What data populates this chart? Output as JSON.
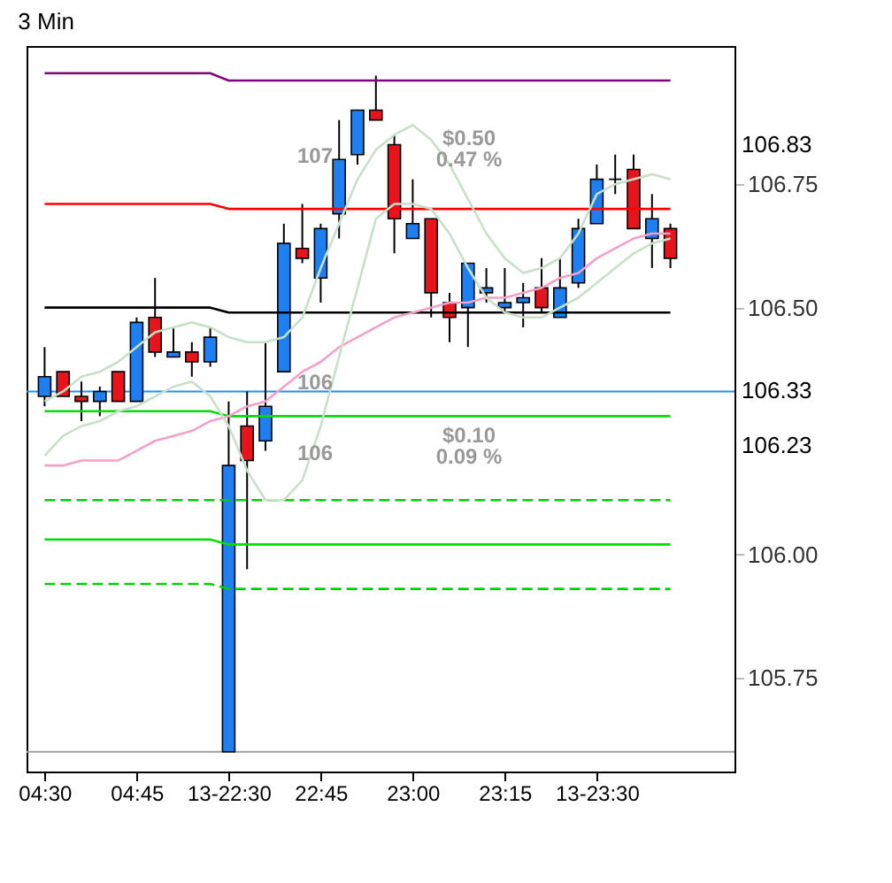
{
  "chart_data": {
    "type": "candlestick",
    "title": "3 Min",
    "categories": [
      "04:30",
      null,
      null,
      null,
      null,
      "04:45",
      null,
      null,
      null,
      null,
      "13-22:30",
      null,
      null,
      null,
      null,
      "22:45",
      null,
      null,
      null,
      null,
      "23:00",
      null,
      null,
      null,
      null,
      "23:15",
      null,
      null,
      null,
      null,
      "13-23:30",
      null,
      null,
      null,
      null
    ],
    "ohlc": [
      [
        106.32,
        106.42,
        106.3,
        106.36
      ],
      [
        106.37,
        106.37,
        106.32,
        106.32
      ],
      [
        106.32,
        106.35,
        106.27,
        106.31
      ],
      [
        106.31,
        106.34,
        106.28,
        106.33
      ],
      [
        106.37,
        106.37,
        106.31,
        106.31
      ],
      [
        106.31,
        106.48,
        106.31,
        106.47
      ],
      [
        106.48,
        106.56,
        106.4,
        106.41
      ],
      [
        106.4,
        106.46,
        106.4,
        106.41
      ],
      [
        106.41,
        106.43,
        106.36,
        106.39
      ],
      [
        106.39,
        106.46,
        106.38,
        106.44
      ],
      [
        105.6,
        106.31,
        105.6,
        106.18
      ],
      [
        106.26,
        106.33,
        105.97,
        106.19
      ],
      [
        106.23,
        106.43,
        106.21,
        106.3
      ],
      [
        106.37,
        106.67,
        106.37,
        106.63
      ],
      [
        106.62,
        106.71,
        106.59,
        106.6
      ],
      [
        106.56,
        106.67,
        106.51,
        106.66
      ],
      [
        106.69,
        106.88,
        106.64,
        106.8
      ],
      [
        106.81,
        106.9,
        106.79,
        106.9
      ],
      [
        106.9,
        106.97,
        106.88,
        106.88
      ],
      [
        106.83,
        106.85,
        106.61,
        106.68
      ],
      [
        106.64,
        106.76,
        106.64,
        106.67
      ],
      [
        106.68,
        106.68,
        106.48,
        106.53
      ],
      [
        106.51,
        106.53,
        106.43,
        106.48
      ],
      [
        106.5,
        106.59,
        106.42,
        106.59
      ],
      [
        106.53,
        106.58,
        106.51,
        106.54
      ],
      [
        106.5,
        106.58,
        106.49,
        106.51
      ],
      [
        106.51,
        106.55,
        106.46,
        106.52
      ],
      [
        106.54,
        106.6,
        106.49,
        106.5
      ],
      [
        106.48,
        106.6,
        106.48,
        106.54
      ],
      [
        106.55,
        106.68,
        106.54,
        106.66
      ],
      [
        106.67,
        106.79,
        106.67,
        106.76
      ],
      [
        106.76,
        106.81,
        106.73,
        106.76
      ],
      [
        106.78,
        106.81,
        106.66,
        106.66
      ],
      [
        106.64,
        106.73,
        106.58,
        106.68
      ],
      [
        106.66,
        106.67,
        106.58,
        106.6
      ]
    ],
    "colors": [
      "#1e7ff0",
      "#e8141b",
      "#e8141b",
      "#1e7ff0",
      "#e8141b",
      "#1e7ff0",
      "#e8141b",
      "#1e7ff0",
      "#e8141b",
      "#1e7ff0",
      "#1e7ff0",
      "#e8141b",
      "#1e7ff0",
      "#1e7ff0",
      "#e8141b",
      "#1e7ff0",
      "#1e7ff0",
      "#1e7ff0",
      "#e8141b",
      "#e8141b",
      "#1e7ff0",
      "#e8141b",
      "#e8141b",
      "#1e7ff0",
      "#1e7ff0",
      "#1e7ff0",
      "#1e7ff0",
      "#e8141b",
      "#1e7ff0",
      "#1e7ff0",
      "#1e7ff0",
      "#000000",
      "#e8141b",
      "#1e7ff0",
      "#e8141b"
    ],
    "series": [
      {
        "type": "line",
        "color": "#800080",
        "line_style": "solid",
        "values": [
          106.975,
          106.975,
          106.975,
          106.975,
          106.975,
          106.975,
          106.975,
          106.975,
          106.975,
          106.975,
          106.96,
          106.96,
          106.96,
          106.96,
          106.96,
          106.96,
          106.96,
          106.96,
          106.96,
          106.96,
          106.96,
          106.96,
          106.96,
          106.96,
          106.96,
          106.96,
          106.96,
          106.96,
          106.96,
          106.96,
          106.96,
          106.96,
          106.96,
          106.96,
          106.96
        ]
      },
      {
        "type": "line",
        "color": "#ff0000",
        "line_style": "solid",
        "values": [
          106.71,
          106.71,
          106.71,
          106.71,
          106.71,
          106.71,
          106.71,
          106.71,
          106.71,
          106.71,
          106.7,
          106.7,
          106.7,
          106.7,
          106.7,
          106.7,
          106.7,
          106.7,
          106.7,
          106.7,
          106.7,
          106.7,
          106.7,
          106.7,
          106.7,
          106.7,
          106.7,
          106.7,
          106.7,
          106.7,
          106.7,
          106.7,
          106.7,
          106.7,
          106.7
        ]
      },
      {
        "type": "line",
        "color": "#000000",
        "line_style": "solid",
        "values": [
          106.5,
          106.5,
          106.5,
          106.5,
          106.5,
          106.5,
          106.5,
          106.5,
          106.5,
          106.5,
          106.49,
          106.49,
          106.49,
          106.49,
          106.49,
          106.49,
          106.49,
          106.49,
          106.49,
          106.49,
          106.49,
          106.49,
          106.49,
          106.49,
          106.49,
          106.49,
          106.49,
          106.49,
          106.49,
          106.49,
          106.49,
          106.49,
          106.49,
          106.49,
          106.49
        ]
      },
      {
        "type": "line",
        "color": "#00e000",
        "line_style": "solid",
        "values": [
          106.29,
          106.29,
          106.29,
          106.29,
          106.29,
          106.29,
          106.29,
          106.29,
          106.29,
          106.29,
          106.28,
          106.28,
          106.28,
          106.28,
          106.28,
          106.28,
          106.28,
          106.28,
          106.28,
          106.28,
          106.28,
          106.28,
          106.28,
          106.28,
          106.28,
          106.28,
          106.28,
          106.28,
          106.28,
          106.28,
          106.28,
          106.28,
          106.28,
          106.28,
          106.28
        ]
      },
      {
        "type": "line",
        "color": "#00d000",
        "line_style": "dashed",
        "values": [
          106.11,
          106.11,
          106.11,
          106.11,
          106.11,
          106.11,
          106.11,
          106.11,
          106.11,
          106.11,
          106.11,
          106.11,
          106.11,
          106.11,
          106.11,
          106.11,
          106.11,
          106.11,
          106.11,
          106.11,
          106.11,
          106.11,
          106.11,
          106.11,
          106.11,
          106.11,
          106.11,
          106.11,
          106.11,
          106.11,
          106.11,
          106.11,
          106.11,
          106.11,
          106.11
        ]
      },
      {
        "type": "line",
        "color": "#00e000",
        "line_style": "solid",
        "values": [
          106.03,
          106.03,
          106.03,
          106.03,
          106.03,
          106.03,
          106.03,
          106.03,
          106.03,
          106.03,
          106.02,
          106.02,
          106.02,
          106.02,
          106.02,
          106.02,
          106.02,
          106.02,
          106.02,
          106.02,
          106.02,
          106.02,
          106.02,
          106.02,
          106.02,
          106.02,
          106.02,
          106.02,
          106.02,
          106.02,
          106.02,
          106.02,
          106.02,
          106.02,
          106.02
        ]
      },
      {
        "type": "line",
        "color": "#00d000",
        "line_style": "dashed",
        "values": [
          105.94,
          105.94,
          105.94,
          105.94,
          105.94,
          105.94,
          105.94,
          105.94,
          105.94,
          105.94,
          105.93,
          105.93,
          105.93,
          105.93,
          105.93,
          105.93,
          105.93,
          105.93,
          105.93,
          105.93,
          105.93,
          105.93,
          105.93,
          105.93,
          105.93,
          105.93,
          105.93,
          105.93,
          105.93,
          105.93,
          105.93,
          105.93,
          105.93,
          105.93,
          105.93
        ]
      },
      {
        "type": "line",
        "color": "#f4a0c8",
        "line_style": "solid",
        "values": [
          106.18,
          106.18,
          106.19,
          106.19,
          106.19,
          106.21,
          106.23,
          106.24,
          106.25,
          106.27,
          106.28,
          106.3,
          106.31,
          106.34,
          106.37,
          106.39,
          106.42,
          106.44,
          106.46,
          106.48,
          106.49,
          106.5,
          106.51,
          106.51,
          106.52,
          106.52,
          106.53,
          106.54,
          106.56,
          106.57,
          106.6,
          106.62,
          106.64,
          106.65,
          106.65
        ]
      },
      {
        "type": "line",
        "color": "#c8e0c8",
        "line_style": "solid",
        "values": [
          106.31,
          106.33,
          106.36,
          106.37,
          106.39,
          106.42,
          106.45,
          106.46,
          106.47,
          106.46,
          106.44,
          106.43,
          106.43,
          106.44,
          106.48,
          106.58,
          106.67,
          106.76,
          106.82,
          106.85,
          106.87,
          106.84,
          106.79,
          106.72,
          106.65,
          106.6,
          106.57,
          106.58,
          106.6,
          106.65,
          106.73,
          106.75,
          106.76,
          106.77,
          106.76
        ]
      },
      {
        "type": "line",
        "color": "#c8e0c8",
        "line_style": "solid",
        "values": [
          106.2,
          106.24,
          106.26,
          106.27,
          106.29,
          106.3,
          106.32,
          106.34,
          106.35,
          106.32,
          106.26,
          106.17,
          106.11,
          106.11,
          106.15,
          106.26,
          106.4,
          106.54,
          106.68,
          106.71,
          106.71,
          106.7,
          106.65,
          106.58,
          106.52,
          106.49,
          106.48,
          106.48,
          106.5,
          106.52,
          106.55,
          106.58,
          106.61,
          106.63,
          106.64
        ]
      }
    ],
    "ref_lines": [
      {
        "axis": "y",
        "value": 106.33,
        "color": "#1e90ff",
        "line_style": "solid",
        "label": "106.33"
      },
      {
        "axis": "y",
        "value": 105.6,
        "color": "#a0a0a0",
        "line_style": "solid"
      }
    ],
    "annotations": [
      "107",
      "106",
      "106",
      "$0.50",
      "0.47 %",
      "$0.10",
      "0.09 %",
      "106.83",
      "106.23"
    ],
    "ylim": [
      105.56,
      107.03
    ],
    "yticks": [
      105.75,
      {
        "value": 106,
        "label": "106.00"
      },
      {
        "value": 106.5,
        "label": "106.50"
      },
      106.75
    ]
  }
}
